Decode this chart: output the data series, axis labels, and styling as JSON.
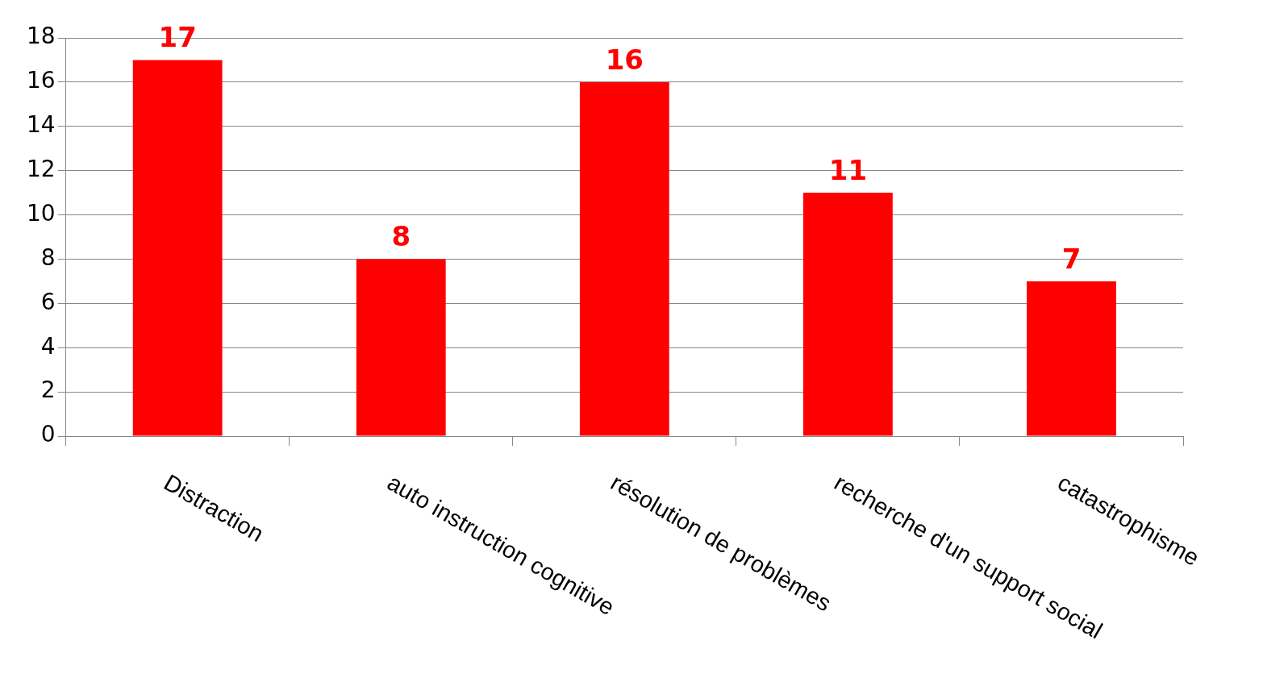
{
  "chart_data": {
    "type": "bar",
    "categories": [
      "Distraction",
      "auto instruction cognitive",
      "résolution de problèmes",
      "recherche d'un support social",
      "catastrophisme"
    ],
    "values": [
      17,
      8,
      16,
      11,
      7
    ],
    "color": "#ff0000",
    "ylim": [
      0,
      18
    ],
    "yticks": [
      0,
      2,
      4,
      6,
      8,
      10,
      12,
      14,
      16,
      18
    ],
    "grid": "y",
    "data_labels": true,
    "legend": false
  }
}
